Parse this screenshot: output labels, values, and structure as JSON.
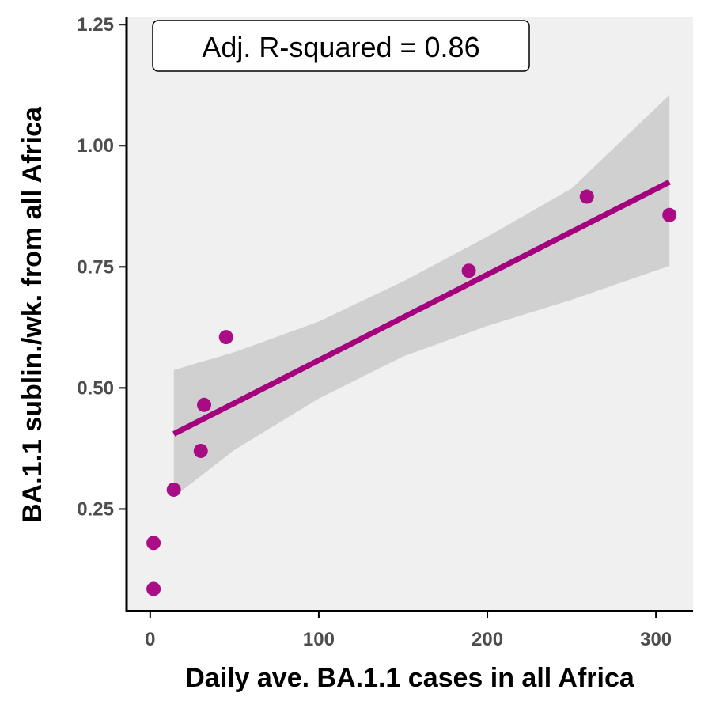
{
  "chart_data": {
    "type": "scatter",
    "title": "",
    "xlabel": "Daily ave. BA.1.1 cases in all Africa",
    "ylabel": "BA.1.1 sublin./wk. from all Africa",
    "xlim": [
      -14,
      322
    ],
    "ylim": [
      0.04,
      1.265
    ],
    "xticks": [
      0,
      100,
      200,
      300
    ],
    "xtick_labels": [
      "0",
      "100",
      "200",
      "300"
    ],
    "yticks": [
      0.25,
      0.5,
      0.75,
      1.0,
      1.25
    ],
    "ytick_labels": [
      "0.25",
      "0.50",
      "0.75",
      "1.00",
      "1.25"
    ],
    "grid": false,
    "annotation": "Adj. R-squared = 0.86",
    "points": [
      {
        "x": 2,
        "y": 0.085
      },
      {
        "x": 2,
        "y": 0.18
      },
      {
        "x": 14,
        "y": 0.29
      },
      {
        "x": 30,
        "y": 0.37
      },
      {
        "x": 32,
        "y": 0.465
      },
      {
        "x": 45,
        "y": 0.605
      },
      {
        "x": 189,
        "y": 0.742
      },
      {
        "x": 259,
        "y": 0.895
      },
      {
        "x": 308,
        "y": 0.857
      }
    ],
    "fit_line": [
      {
        "x": 14,
        "y": 0.405
      },
      {
        "x": 308,
        "y": 0.925
      }
    ],
    "confidence_band": [
      {
        "x": 14,
        "lower": 0.275,
        "upper": 0.537
      },
      {
        "x": 50,
        "lower": 0.372,
        "upper": 0.574
      },
      {
        "x": 100,
        "lower": 0.478,
        "upper": 0.637
      },
      {
        "x": 150,
        "lower": 0.565,
        "upper": 0.72
      },
      {
        "x": 200,
        "lower": 0.628,
        "upper": 0.812
      },
      {
        "x": 250,
        "lower": 0.682,
        "upper": 0.912
      },
      {
        "x": 308,
        "lower": 0.752,
        "upper": 1.105
      }
    ],
    "colors": {
      "point": "#a5007e",
      "fit": "#a5007e",
      "band": "#d0d0d0",
      "panel": "#f0f0f0"
    }
  }
}
